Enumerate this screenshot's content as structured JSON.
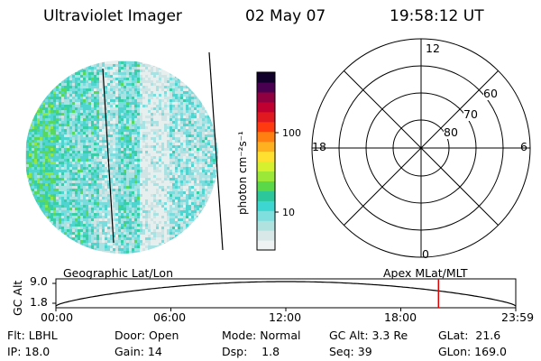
{
  "header": {
    "instrument": "Ultraviolet Imager",
    "date": "02 May 07",
    "time": "19:58:12 UT"
  },
  "colorbar": {
    "unit_label": "photon cm⁻²s⁻¹",
    "tick_labels": [
      "100",
      "10"
    ],
    "colors": [
      "#eef2f2",
      "#d8e8e8",
      "#b0e2e0",
      "#7fdede",
      "#3ed6d0",
      "#2cc79a",
      "#5bd84a",
      "#9be838",
      "#d6f030",
      "#ffe030",
      "#ffb020",
      "#ff8010",
      "#ff3a10",
      "#e01820",
      "#c00030",
      "#900040",
      "#4a0050",
      "#10002a"
    ]
  },
  "polar_plot": {
    "mlt_labels": {
      "top": "12",
      "left": "18",
      "right": "6",
      "bottom": "0"
    },
    "lat_labels": [
      "60",
      "70",
      "80"
    ]
  },
  "orbit_panel": {
    "ylabel": "GC Alt",
    "y_ticks": [
      "9.0",
      "1.8"
    ],
    "left_title": "Geographic Lat/Lon",
    "right_title": "Apex MLat/MLT",
    "x_ticks": [
      "00:00",
      "06:00",
      "12:00",
      "18:00",
      "23:59"
    ],
    "current_time_marker_fraction": 0.8319
  },
  "status": {
    "flt": "Flt: LBHL",
    "ip": "IP: 18.0",
    "door": "Door: Open",
    "gain": "Gain: 14",
    "mode": "Mode: Normal",
    "dsp": "Dsp:    1.8",
    "gc_alt": "GC Alt: 3.3 Re",
    "seq": "Seq: 39",
    "glat": "GLat:  21.6",
    "glon": "GLon: 169.0"
  }
}
